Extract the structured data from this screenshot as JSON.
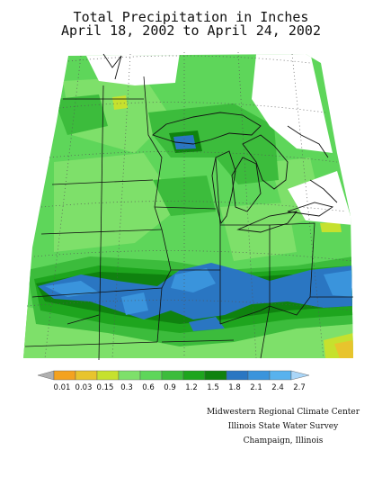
{
  "title": {
    "line1": "Total Precipitation in Inches",
    "line2": "April 18, 2002 to April 24, 2002"
  },
  "legend": {
    "breaks": [
      "0.01",
      "0.03",
      "0.15",
      "0.3",
      "0.6",
      "0.9",
      "1.2",
      "1.5",
      "1.8",
      "2.1",
      "2.4",
      "2.7"
    ],
    "colors": [
      "#b0b0b0",
      "#f4a21f",
      "#e8c42d",
      "#c6e12e",
      "#7ee06a",
      "#5ed65a",
      "#3cbc3c",
      "#1ea51e",
      "#0f820f",
      "#2a76c2",
      "#3a94dc",
      "#58b2ee",
      "#aad6f8"
    ]
  },
  "credits": {
    "line1": "Midwestern Regional Climate Center",
    "line2": "Illinois State Water Survey",
    "line3": "Champaign, Illinois"
  }
}
